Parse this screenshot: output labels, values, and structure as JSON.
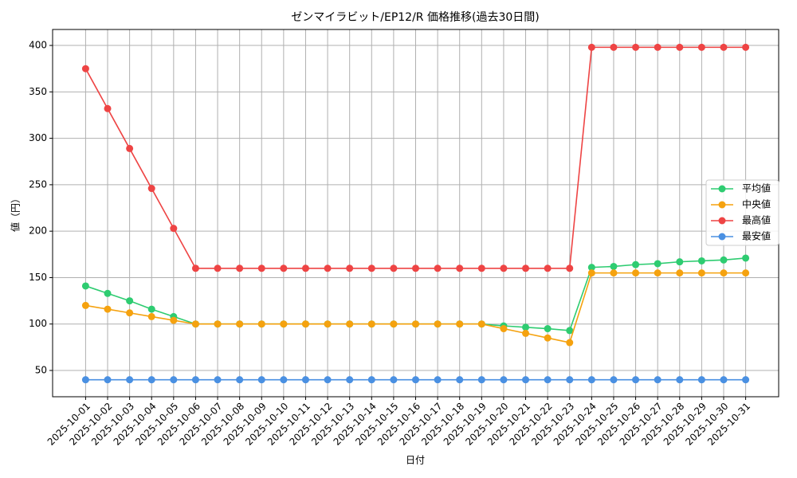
{
  "chart_data": {
    "type": "line",
    "title": "ゼンマイラビット/EP12/R 価格推移(過去30日間)",
    "x_label": "日付",
    "y_label": "値（円）",
    "categories": [
      "2025-10-01",
      "2025-10-02",
      "2025-10-03",
      "2025-10-04",
      "2025-10-05",
      "2025-10-06",
      "2025-10-07",
      "2025-10-08",
      "2025-10-09",
      "2025-10-10",
      "2025-10-11",
      "2025-10-12",
      "2025-10-13",
      "2025-10-14",
      "2025-10-15",
      "2025-10-16",
      "2025-10-17",
      "2025-10-18",
      "2025-10-19",
      "2025-10-20",
      "2025-10-21",
      "2025-10-22",
      "2025-10-23",
      "2025-10-24",
      "2025-10-25",
      "2025-10-26",
      "2025-10-27",
      "2025-10-28",
      "2025-10-29",
      "2025-10-30",
      "2025-10-31"
    ],
    "series": [
      {
        "name": "平均値",
        "color": "#2ecc71",
        "values": [
          141,
          133,
          125,
          116,
          108,
          100,
          100,
          100,
          100,
          100,
          100,
          100,
          100,
          100,
          100,
          100,
          100,
          100,
          100,
          98,
          96.5,
          95,
          93,
          161,
          162,
          164,
          165,
          167,
          168,
          169,
          171
        ]
      },
      {
        "name": "中央値",
        "color": "#f5a20f",
        "values": [
          120,
          116,
          112,
          108,
          104,
          100,
          100,
          100,
          100,
          100,
          100,
          100,
          100,
          100,
          100,
          100,
          100,
          100,
          100,
          95,
          90,
          85,
          80,
          155,
          155,
          155,
          155,
          155,
          155,
          155,
          155
        ]
      },
      {
        "name": "最高値",
        "color": "#ee4444",
        "values": [
          375,
          332,
          289,
          246,
          203,
          160,
          160,
          160,
          160,
          160,
          160,
          160,
          160,
          160,
          160,
          160,
          160,
          160,
          160,
          160,
          160,
          160,
          160,
          398,
          398,
          398,
          398,
          398,
          398,
          398,
          398
        ]
      },
      {
        "name": "最安値",
        "color": "#4a90e2",
        "values": [
          40,
          40,
          40,
          40,
          40,
          40,
          40,
          40,
          40,
          40,
          40,
          40,
          40,
          40,
          40,
          40,
          40,
          40,
          40,
          40,
          40,
          40,
          40,
          40,
          40,
          40,
          40,
          40,
          40,
          40,
          40
        ]
      }
    ],
    "ylim": [
      21.7,
      417.2
    ],
    "yticks": [
      50,
      100,
      150,
      200,
      250,
      300,
      350,
      400
    ],
    "grid": true,
    "legend": "right"
  }
}
